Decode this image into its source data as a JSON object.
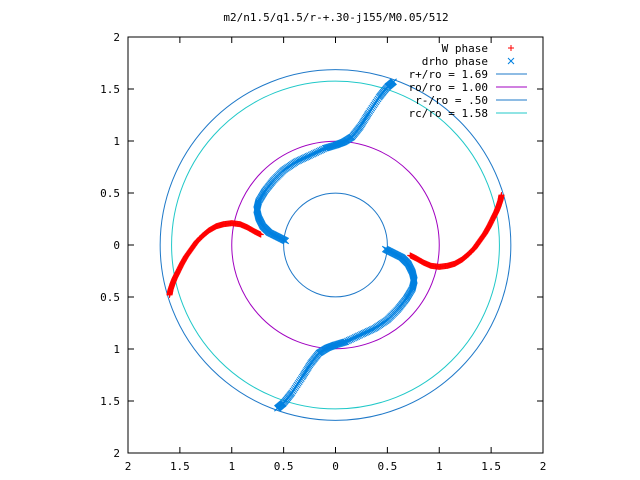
{
  "chart_data": {
    "type": "scatter",
    "title": "m2/n1.5/q1.5/r-+.30-j155/M0.05/512",
    "xlabel": "",
    "ylabel": "",
    "xlim": [
      -2,
      2
    ],
    "ylim": [
      -2,
      2
    ],
    "x_ticks": [
      {
        "value": -2,
        "label": "2"
      },
      {
        "value": -1.5,
        "label": "1.5"
      },
      {
        "value": -1,
        "label": "1"
      },
      {
        "value": -0.5,
        "label": "0.5"
      },
      {
        "value": 0,
        "label": "0"
      },
      {
        "value": 0.5,
        "label": "0.5"
      },
      {
        "value": 1,
        "label": "1"
      },
      {
        "value": 1.5,
        "label": "1.5"
      },
      {
        "value": 2,
        "label": "2"
      }
    ],
    "y_ticks": [
      {
        "value": 2,
        "label": "2"
      },
      {
        "value": 1.5,
        "label": "1.5"
      },
      {
        "value": 1,
        "label": "1"
      },
      {
        "value": 0.5,
        "label": "0.5"
      },
      {
        "value": 0,
        "label": "0"
      },
      {
        "value": -0.5,
        "label": "0.5"
      },
      {
        "value": -1,
        "label": "1"
      },
      {
        "value": -1.5,
        "label": "1.5"
      },
      {
        "value": -2,
        "label": "2"
      }
    ],
    "grid": false,
    "legend_position": "top-right",
    "legend": [
      {
        "label": "W phase",
        "marker": "+",
        "color": "#ff0000"
      },
      {
        "label": "drho phase",
        "marker": "x",
        "color": "#0080e0"
      },
      {
        "label": "r+/ro = 1.69",
        "marker": "line",
        "color": "#1e78c8"
      },
      {
        "label": "ro/ro = 1.00",
        "marker": "line",
        "color": "#a000c0"
      },
      {
        "label": "r-/ro = .50",
        "marker": "line",
        "color": "#1e78c8"
      },
      {
        "label": "rc/ro = 1.58",
        "marker": "line",
        "color": "#20c8c8"
      }
    ],
    "circles": [
      {
        "name": "r+/ro = 1.69",
        "radius": 1.69,
        "color": "#1e78c8"
      },
      {
        "name": "ro/ro = 1.00",
        "radius": 1.0,
        "color": "#a000c0"
      },
      {
        "name": "r-/ro = .50",
        "radius": 0.5,
        "color": "#1e78c8"
      },
      {
        "name": "rc/ro = 1.58",
        "radius": 1.58,
        "color": "#20c8c8"
      }
    ],
    "series": [
      {
        "name": "W phase",
        "marker": "+",
        "color": "#ff0000",
        "arms": [
          [
            [
              1.6,
              0.48
            ],
            [
              1.59,
              0.43
            ],
            [
              1.57,
              0.37
            ],
            [
              1.55,
              0.32
            ],
            [
              1.52,
              0.26
            ],
            [
              1.48,
              0.18
            ],
            [
              1.44,
              0.11
            ],
            [
              1.39,
              0.04
            ],
            [
              1.34,
              -0.03
            ],
            [
              1.28,
              -0.09
            ],
            [
              1.22,
              -0.14
            ],
            [
              1.15,
              -0.18
            ],
            [
              1.08,
              -0.2
            ],
            [
              1.0,
              -0.21
            ],
            [
              0.92,
              -0.2
            ],
            [
              0.85,
              -0.17
            ],
            [
              0.78,
              -0.13
            ],
            [
              0.72,
              -0.1
            ]
          ],
          [
            [
              -1.6,
              -0.48
            ],
            [
              -1.59,
              -0.43
            ],
            [
              -1.57,
              -0.37
            ],
            [
              -1.55,
              -0.32
            ],
            [
              -1.52,
              -0.26
            ],
            [
              -1.48,
              -0.18
            ],
            [
              -1.44,
              -0.11
            ],
            [
              -1.39,
              -0.04
            ],
            [
              -1.34,
              0.03
            ],
            [
              -1.28,
              0.09
            ],
            [
              -1.22,
              0.14
            ],
            [
              -1.15,
              0.18
            ],
            [
              -1.08,
              0.2
            ],
            [
              -1.0,
              0.21
            ],
            [
              -0.92,
              0.2
            ],
            [
              -0.85,
              0.17
            ],
            [
              -0.78,
              0.13
            ],
            [
              -0.72,
              0.1
            ]
          ]
        ]
      },
      {
        "name": "drho phase",
        "marker": "x",
        "color": "#0080e0",
        "arms": [
          [
            [
              0.48,
              -0.04
            ],
            [
              0.56,
              -0.08
            ],
            [
              0.64,
              -0.12
            ],
            [
              0.7,
              -0.18
            ],
            [
              0.74,
              -0.26
            ],
            [
              0.76,
              -0.34
            ],
            [
              0.74,
              -0.42
            ],
            [
              0.68,
              -0.52
            ],
            [
              0.6,
              -0.62
            ],
            [
              0.5,
              -0.72
            ],
            [
              0.38,
              -0.8
            ],
            [
              0.25,
              -0.86
            ],
            [
              0.1,
              -0.93
            ],
            [
              0.0,
              -0.96
            ],
            [
              -0.08,
              -0.99
            ],
            [
              -0.16,
              -1.04
            ],
            [
              -0.24,
              -1.14
            ],
            [
              -0.32,
              -1.27
            ],
            [
              -0.42,
              -1.42
            ],
            [
              -0.5,
              -1.52
            ],
            [
              -0.56,
              -1.57
            ]
          ],
          [
            [
              -0.48,
              0.04
            ],
            [
              -0.56,
              0.08
            ],
            [
              -0.64,
              0.12
            ],
            [
              -0.7,
              0.18
            ],
            [
              -0.74,
              0.26
            ],
            [
              -0.76,
              0.34
            ],
            [
              -0.74,
              0.42
            ],
            [
              -0.68,
              0.52
            ],
            [
              -0.6,
              0.62
            ],
            [
              -0.5,
              0.72
            ],
            [
              -0.38,
              0.8
            ],
            [
              -0.25,
              0.86
            ],
            [
              -0.1,
              0.93
            ],
            [
              0.0,
              0.96
            ],
            [
              0.08,
              0.99
            ],
            [
              0.16,
              1.04
            ],
            [
              0.24,
              1.14
            ],
            [
              0.32,
              1.27
            ],
            [
              0.42,
              1.42
            ],
            [
              0.5,
              1.52
            ],
            [
              0.56,
              1.57
            ]
          ]
        ]
      }
    ]
  }
}
